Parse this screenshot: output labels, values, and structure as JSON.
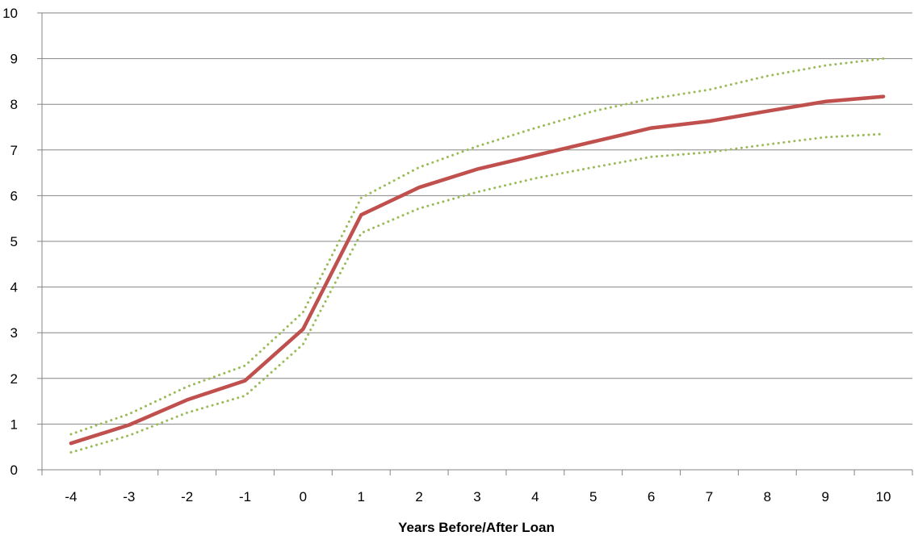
{
  "chart_data": {
    "type": "line",
    "title": "",
    "xlabel": "Years Before/After Loan",
    "ylabel": "",
    "categories": [
      "-4",
      "-3",
      "-2",
      "-1",
      "0",
      "1",
      "2",
      "3",
      "4",
      "5",
      "6",
      "7",
      "8",
      "9",
      "10"
    ],
    "ylim": [
      0,
      10
    ],
    "yticks": [
      0,
      1,
      2,
      3,
      4,
      5,
      6,
      7,
      8,
      9,
      10
    ],
    "grid": true,
    "legend": "none",
    "series": [
      {
        "style": "dotted",
        "color": "#9BBB59",
        "values": [
          0.78,
          1.22,
          1.82,
          2.28,
          3.45,
          5.95,
          6.62,
          7.08,
          7.48,
          7.85,
          8.12,
          8.32,
          8.62,
          8.85,
          9.0
        ]
      },
      {
        "style": "solid",
        "color": "#C0504D",
        "values": [
          0.58,
          0.98,
          1.53,
          1.95,
          3.08,
          5.58,
          6.18,
          6.58,
          6.88,
          7.18,
          7.48,
          7.63,
          7.85,
          8.06,
          8.17
        ]
      },
      {
        "style": "dotted",
        "color": "#9BBB59",
        "values": [
          0.38,
          0.75,
          1.25,
          1.62,
          2.75,
          5.18,
          5.72,
          6.08,
          6.38,
          6.62,
          6.85,
          6.95,
          7.12,
          7.28,
          7.35
        ]
      }
    ]
  }
}
